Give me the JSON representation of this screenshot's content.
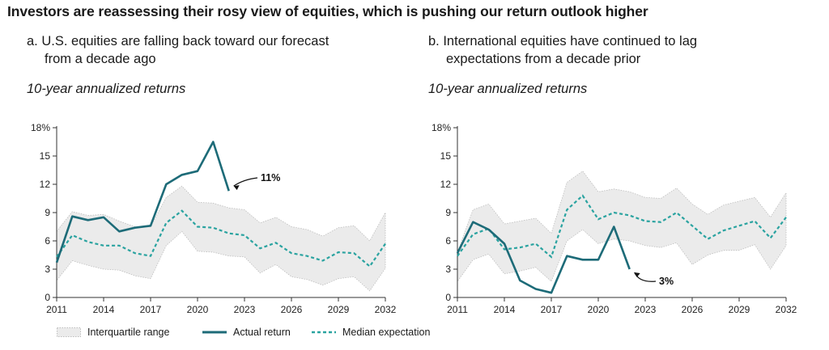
{
  "title": "Investors are reassessing their rosy view of equities, which is pushing our return outlook higher",
  "colors": {
    "actual": "#1d6b78",
    "median": "#2aa3a0",
    "band_fill": "#ebebeb",
    "band_edge": "#bdbdbd"
  },
  "chart_data": [
    {
      "type": "line",
      "subtitle_line1": "a. U.S. equities are falling back toward our forecast",
      "subtitle_line2": "from a decade ago",
      "ylabel": "10-year annualized returns",
      "ylim": [
        0,
        18
      ],
      "yticks": [
        "0",
        "3",
        "6",
        "9",
        "12",
        "15",
        "18%"
      ],
      "xlim": [
        2011,
        2032
      ],
      "xticks": [
        "2011",
        "2014",
        "2017",
        "2020",
        "2023",
        "2026",
        "2029",
        "2032"
      ],
      "annotation": "11%",
      "series": [
        {
          "name": "Interquartile range",
          "x": [
            2011,
            2012,
            2013,
            2014,
            2015,
            2016,
            2017,
            2018,
            2019,
            2020,
            2021,
            2022,
            2023,
            2024,
            2025,
            2026,
            2027,
            2028,
            2029,
            2030,
            2031,
            2032
          ],
          "lower": [
            1.8,
            3.9,
            3.4,
            3.0,
            2.9,
            2.3,
            2.0,
            5.5,
            7.0,
            4.9,
            4.8,
            4.4,
            4.3,
            2.6,
            3.5,
            2.2,
            1.9,
            1.3,
            2.0,
            2.2,
            0.7,
            3.1
          ],
          "upper": [
            7.0,
            9.1,
            8.7,
            8.8,
            8.1,
            7.5,
            7.5,
            10.6,
            11.8,
            10.1,
            10.0,
            9.5,
            9.3,
            7.9,
            8.5,
            7.5,
            7.2,
            6.5,
            7.4,
            7.6,
            6.0,
            9.0
          ]
        },
        {
          "name": "Actual return",
          "x": [
            2011,
            2012,
            2013,
            2014,
            2015,
            2016,
            2017,
            2018,
            2019,
            2020,
            2021,
            2022
          ],
          "y": [
            3.7,
            8.6,
            8.2,
            8.5,
            7.0,
            7.4,
            7.6,
            12.0,
            13.0,
            13.4,
            16.5,
            11.3
          ]
        },
        {
          "name": "Median expectation",
          "x": [
            2011,
            2012,
            2013,
            2014,
            2015,
            2016,
            2017,
            2018,
            2019,
            2020,
            2021,
            2022,
            2023,
            2024,
            2025,
            2026,
            2027,
            2028,
            2029,
            2030,
            2031,
            2032
          ],
          "y": [
            4.3,
            6.6,
            5.9,
            5.5,
            5.5,
            4.7,
            4.4,
            7.9,
            9.2,
            7.5,
            7.4,
            6.8,
            6.6,
            5.2,
            5.8,
            4.7,
            4.4,
            3.9,
            4.8,
            4.7,
            3.3,
            5.7
          ]
        }
      ]
    },
    {
      "type": "line",
      "subtitle_line1": "b. International equities have continued to lag",
      "subtitle_line2": "expectations from a decade prior",
      "ylabel": "10-year annualized returns",
      "ylim": [
        0,
        18
      ],
      "yticks": [
        "0",
        "3",
        "6",
        "9",
        "12",
        "15",
        "18%"
      ],
      "xlim": [
        2011,
        2032
      ],
      "xticks": [
        "2011",
        "2014",
        "2017",
        "2020",
        "2023",
        "2026",
        "2029",
        "2032"
      ],
      "annotation": "3%",
      "series": [
        {
          "name": "Interquartile range",
          "x": [
            2011,
            2012,
            2013,
            2014,
            2015,
            2016,
            2017,
            2018,
            2019,
            2020,
            2021,
            2022,
            2023,
            2024,
            2025,
            2026,
            2027,
            2028,
            2029,
            2030,
            2031,
            2032
          ],
          "lower": [
            1.7,
            4.0,
            4.6,
            2.5,
            2.8,
            3.2,
            1.7,
            6.0,
            7.2,
            5.7,
            6.2,
            6.0,
            5.5,
            5.3,
            5.8,
            3.5,
            4.5,
            5.0,
            5.0,
            5.6,
            3.0,
            5.5
          ],
          "upper": [
            4.8,
            9.3,
            9.9,
            7.8,
            8.1,
            8.4,
            6.8,
            12.2,
            13.4,
            11.2,
            11.5,
            11.2,
            10.6,
            10.5,
            11.6,
            9.9,
            8.8,
            9.8,
            10.2,
            10.6,
            8.5,
            11.1
          ]
        },
        {
          "name": "Actual return",
          "x": [
            2011,
            2012,
            2013,
            2014,
            2015,
            2016,
            2017,
            2018,
            2019,
            2020,
            2021,
            2022
          ],
          "y": [
            4.7,
            8.0,
            7.2,
            5.7,
            1.8,
            0.9,
            0.5,
            4.4,
            4.0,
            4.0,
            7.5,
            3.0
          ]
        },
        {
          "name": "Median expectation",
          "x": [
            2011,
            2012,
            2013,
            2014,
            2015,
            2016,
            2017,
            2018,
            2019,
            2020,
            2021,
            2022,
            2023,
            2024,
            2025,
            2026,
            2027,
            2028,
            2029,
            2030,
            2031,
            2032
          ],
          "y": [
            4.4,
            6.7,
            7.3,
            5.1,
            5.3,
            5.7,
            4.3,
            9.3,
            10.8,
            8.3,
            9.0,
            8.7,
            8.1,
            8.0,
            9.0,
            7.6,
            6.2,
            7.1,
            7.6,
            8.1,
            6.3,
            8.5
          ]
        }
      ]
    }
  ],
  "legend": {
    "range": "Interquartile range",
    "actual": "Actual return",
    "median": "Median expectation"
  }
}
